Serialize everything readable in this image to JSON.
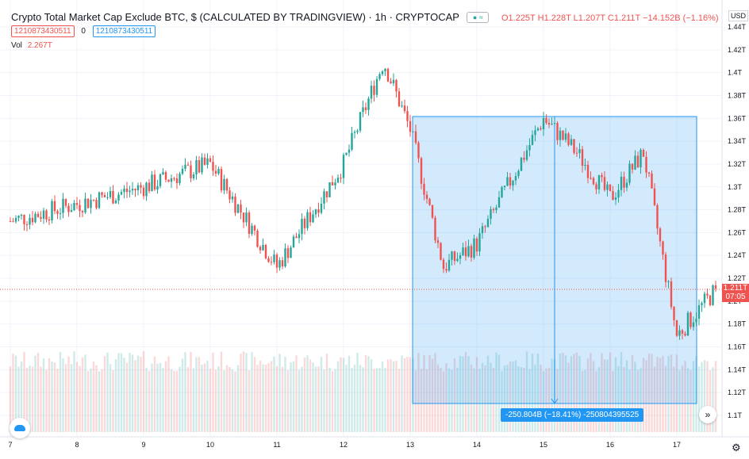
{
  "header": {
    "title": "Crypto Total Market Cap Exclude BTC, $ (CALCULATED BY TRADINGVIEW) · 1h · CRYPTOCAP",
    "ohlc": "O1.225T H1.228T L1.207T C1.211T −14.152B (−1.16%)",
    "indicator_left": "1210873430511",
    "indicator_mid": "0",
    "indicator_right": "1210873430511",
    "vol_label": "Vol",
    "vol_value": "2.267T",
    "currency": "USD"
  },
  "price_tag": {
    "value": "1.211T",
    "countdown": "07:05"
  },
  "measure": {
    "label": "-250.804B (−18.41%) -250804395525"
  },
  "colors": {
    "up": "#26a69a",
    "down": "#ef5350",
    "measure": "#2196f3"
  },
  "icons": {
    "logo": "tradingview-logo-icon",
    "scroll": "chevron-double-right-icon",
    "settings": "gear-icon",
    "visibility": "eye-icon"
  },
  "chart_data": {
    "type": "candlestick",
    "timeframe": "1h",
    "y_ticks": [
      "1.1T",
      "1.12T",
      "1.14T",
      "1.16T",
      "1.18T",
      "1.2T",
      "1.22T",
      "1.24T",
      "1.26T",
      "1.28T",
      "1.3T",
      "1.32T",
      "1.34T",
      "1.36T",
      "1.38T",
      "1.4T",
      "1.42T",
      "1.44T"
    ],
    "ylim": [
      1.09,
      1.45
    ],
    "x_ticks": [
      "7",
      "8",
      "9",
      "10",
      "11",
      "12",
      "13",
      "14",
      "15",
      "16",
      "17"
    ],
    "last_close": 1.211,
    "series_close_approx": [
      {
        "day": "7",
        "close": 1.27
      },
      {
        "day": "8",
        "close": 1.285
      },
      {
        "day": "9",
        "close": 1.3
      },
      {
        "day": "10",
        "close": 1.32
      },
      {
        "day": "11",
        "close": 1.23
      },
      {
        "day": "12",
        "close": 1.32
      },
      {
        "day": "12.6",
        "close": 1.41
      },
      {
        "day": "13",
        "close": 1.35
      },
      {
        "day": "13.5",
        "close": 1.23
      },
      {
        "day": "14",
        "close": 1.25
      },
      {
        "day": "15",
        "close": 1.36
      },
      {
        "day": "15.5",
        "close": 1.33
      },
      {
        "day": "16",
        "close": 1.29
      },
      {
        "day": "16.5",
        "close": 1.33
      },
      {
        "day": "17",
        "close": 1.17
      },
      {
        "day": "17.6",
        "close": 1.211
      }
    ],
    "measure_range": {
      "x_start": "13",
      "x_end": "17.3",
      "y_top": 1.361,
      "y_bottom": 1.11
    }
  }
}
